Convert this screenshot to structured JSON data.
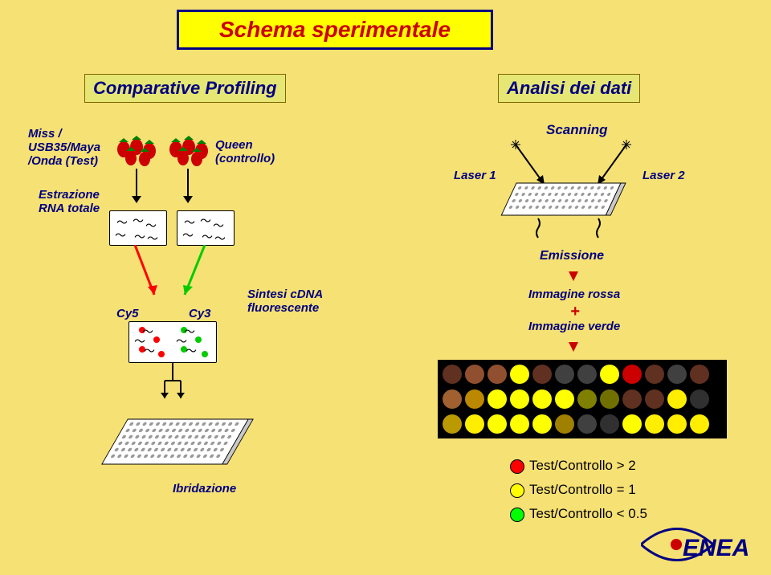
{
  "background_color": "#f6e174",
  "title": {
    "text": "Schema sperimentale",
    "bg": "#ffff00",
    "border": "#000080",
    "fg": "#cc0000",
    "fontsize": 28
  },
  "profiling_box": {
    "text": "Comparative Profiling",
    "bg": "#e6e675",
    "border": "#806600",
    "fg": "#000080",
    "fontsize": 22
  },
  "analysis_box": {
    "text": "Analisi dei dati",
    "bg": "#e6e675",
    "border": "#806600",
    "fg": "#000080",
    "fontsize": 22
  },
  "miss_label": {
    "lines": [
      "Miss /",
      "USB35/Maya",
      "/Onda (Test)"
    ],
    "color": "#000080",
    "fontsize": 15
  },
  "queen_label": {
    "lines": [
      "Queen",
      "(controllo)"
    ],
    "color": "#000080",
    "fontsize": 15
  },
  "rna_label": {
    "lines": [
      "Estrazione",
      "RNA totale"
    ],
    "color": "#000080",
    "fontsize": 15
  },
  "cy5": {
    "text": "Cy5",
    "color": "#000080"
  },
  "cy3": {
    "text": "Cy3",
    "color": "#000080"
  },
  "sintesi": {
    "lines": [
      "Sintesi cDNA",
      "fluorescente"
    ],
    "color": "#000080",
    "fontsize": 15
  },
  "ibrid": {
    "text": "Ibridazione",
    "color": "#000080",
    "fontsize": 15
  },
  "scanning": {
    "text": "Scanning",
    "color": "#000080",
    "fontsize": 17
  },
  "laser1": {
    "text": "Laser 1",
    "color": "#000080",
    "fontsize": 15
  },
  "laser2": {
    "text": "Laser 2",
    "color": "#000080",
    "fontsize": 15
  },
  "emissione": {
    "text": "Emissione",
    "color": "#000080",
    "fontsize": 16
  },
  "img_rossa": {
    "text": "Immagine rossa",
    "color": "#000080",
    "fontsize": 15
  },
  "plus": {
    "text": "+",
    "color": "#cc0000",
    "fontsize": 20
  },
  "img_verde": {
    "text": "Immagine verde",
    "color": "#000080",
    "fontsize": 15
  },
  "legend": [
    {
      "color": "#ff0000",
      "text": "Test/Controllo > 2"
    },
    {
      "color": "#ffff00",
      "text": "Test/Controllo = 1"
    },
    {
      "color": "#00ff00",
      "text": "Test/Controllo < 0.5"
    }
  ],
  "strawberry_color": "#cc0000",
  "strawberry_leaf": "#008000",
  "cy5_color": "#ff0000",
  "cy3_color": "#00cc00",
  "scan_chip_grid": "#999999",
  "scan_spot_rows": [
    [
      "#603020",
      "#905030",
      "#905030",
      "#ffff00",
      "#603020",
      "#404040",
      "#404040",
      "#ffff00",
      "#cc0000",
      "#603020",
      "#404040",
      "#603020"
    ],
    [
      "#a06030",
      "#bb8800",
      "#ffff00",
      "#ffff00",
      "#ffff00",
      "#ffff00",
      "#808000",
      "#707000",
      "#603020",
      "#603020",
      "#ffee00",
      "#303030"
    ],
    [
      "#bb9900",
      "#ffee00",
      "#ffff00",
      "#ffff00",
      "#ffff00",
      "#a08000",
      "#404040",
      "#303030",
      "#ffff00",
      "#ffee00",
      "#ffee00",
      "#ffee00"
    ]
  ],
  "logo_text": "ENEA",
  "logo_color": "#000080"
}
